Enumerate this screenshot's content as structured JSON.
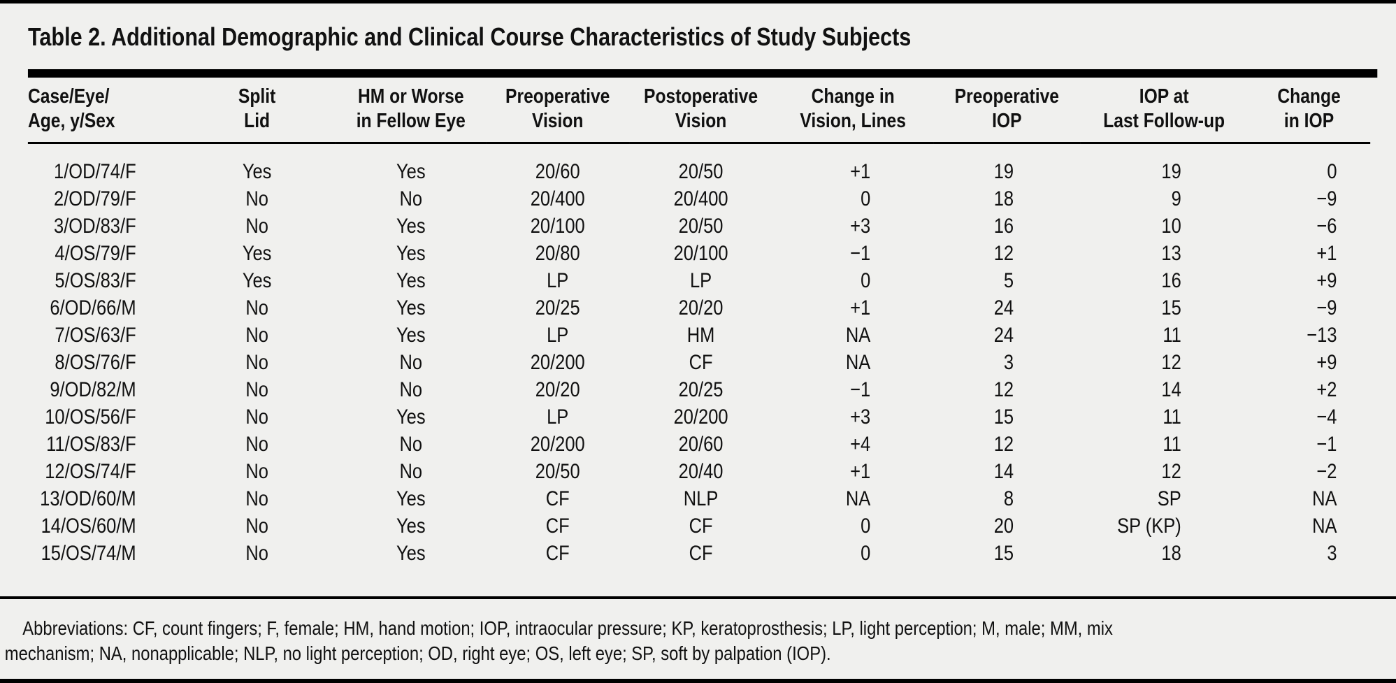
{
  "title": "Table 2. Additional Demographic and Clinical Course Characteristics of Study Subjects",
  "table": {
    "columns": [
      {
        "id": "case-eye-age-sex",
        "lines": [
          "Case/Eye/",
          "Age, y/Sex"
        ]
      },
      {
        "id": "split-lid",
        "lines": [
          "Split",
          "Lid"
        ]
      },
      {
        "id": "hm-or-worse-fellow-eye",
        "lines": [
          "HM or Worse",
          "in Fellow Eye"
        ]
      },
      {
        "id": "preoperative-vision",
        "lines": [
          "Preoperative",
          "Vision"
        ]
      },
      {
        "id": "postoperative-vision",
        "lines": [
          "Postoperative",
          "Vision"
        ]
      },
      {
        "id": "change-in-vision-lines",
        "lines": [
          "Change in",
          "Vision, Lines"
        ]
      },
      {
        "id": "preoperative-iop",
        "lines": [
          "Preoperative",
          "IOP"
        ]
      },
      {
        "id": "iop-at-last-follow-up",
        "lines": [
          "IOP at",
          "Last Follow-up"
        ]
      },
      {
        "id": "change-in-iop",
        "lines": [
          "Change",
          "in IOP"
        ]
      }
    ],
    "rows": [
      [
        "1/OD/74/F",
        "Yes",
        "Yes",
        "20/60",
        "20/50",
        "+1",
        "19",
        "19",
        "0"
      ],
      [
        "2/OD/79/F",
        "No",
        "No",
        "20/400",
        "20/400",
        "0",
        "18",
        "9",
        "−9"
      ],
      [
        "3/OD/83/F",
        "No",
        "Yes",
        "20/100",
        "20/50",
        "+3",
        "16",
        "10",
        "−6"
      ],
      [
        "4/OS/79/F",
        "Yes",
        "Yes",
        "20/80",
        "20/100",
        "−1",
        "12",
        "13",
        "+1"
      ],
      [
        "5/OS/83/F",
        "Yes",
        "Yes",
        "LP",
        "LP",
        "0",
        "5",
        "16",
        "+9"
      ],
      [
        "6/OD/66/M",
        "No",
        "Yes",
        "20/25",
        "20/20",
        "+1",
        "24",
        "15",
        "−9"
      ],
      [
        "7/OS/63/F",
        "No",
        "Yes",
        "LP",
        "HM",
        "NA",
        "24",
        "11",
        "−13"
      ],
      [
        "8/OS/76/F",
        "No",
        "No",
        "20/200",
        "CF",
        "NA",
        "3",
        "12",
        "+9"
      ],
      [
        "9/OD/82/M",
        "No",
        "No",
        "20/20",
        "20/25",
        "−1",
        "12",
        "14",
        "+2"
      ],
      [
        "10/OS/56/F",
        "No",
        "Yes",
        "LP",
        "20/200",
        "+3",
        "15",
        "11",
        "−4"
      ],
      [
        "11/OS/83/F",
        "No",
        "No",
        "20/200",
        "20/60",
        "+4",
        "12",
        "11",
        "−1"
      ],
      [
        "12/OS/74/F",
        "No",
        "No",
        "20/50",
        "20/40",
        "+1",
        "14",
        "12",
        "−2"
      ],
      [
        "13/OD/60/M",
        "No",
        "Yes",
        "CF",
        "NLP",
        "NA",
        "8",
        "SP",
        "NA"
      ],
      [
        "14/OS/60/M",
        "No",
        "Yes",
        "CF",
        "CF",
        "0",
        "20",
        "SP (KP)",
        "NA"
      ],
      [
        "15/OS/74/M",
        "No",
        "Yes",
        "CF",
        "CF",
        "0",
        "15",
        "18",
        "3"
      ]
    ]
  },
  "footnote": {
    "line1": "Abbreviations: CF, count fingers; F, female; HM, hand motion; IOP, intraocular pressure; KP, keratoprosthesis; LP, light perception; M, male; MM, mix",
    "line2": "mechanism; NA, nonapplicable; NLP, no light perception; OD, right eye; OS, left eye; SP, soft by palpation (IOP)."
  },
  "colors": {
    "background": "#f0f0ee",
    "rule": "#000000",
    "text": "#111111"
  }
}
